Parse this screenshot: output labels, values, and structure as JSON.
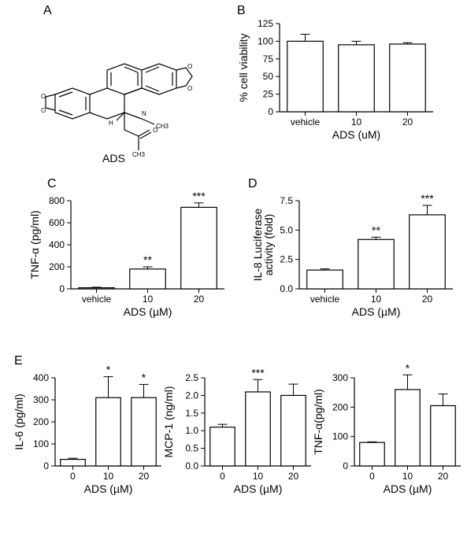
{
  "panelLabels": {
    "A": "A",
    "B": "B",
    "C": "C",
    "D": "D",
    "E": "E"
  },
  "molecule": {
    "caption": "ADS",
    "labels": {
      "N": "N",
      "CH3": "CH3",
      "H": "H",
      "O1": "O",
      "O2": "O",
      "O3": "O",
      "O4": "O",
      "O5": "O",
      "carbonylC": "CH3"
    }
  },
  "panelB": {
    "type": "bar",
    "ylabel": "% cell viability",
    "xlabel": "ADS (uM)",
    "categories": [
      "vehicle",
      "10",
      "20"
    ],
    "values": [
      100,
      95,
      96
    ],
    "errors": [
      10,
      5,
      2
    ],
    "ylim": [
      0,
      125
    ],
    "ytick_step": 25,
    "bar_fill": "#ffffff",
    "bar_stroke": "#000000",
    "axis_color": "#000000",
    "bar_width": 0.7,
    "tick_fontsize": 12,
    "label_fontsize": 14
  },
  "panelC": {
    "type": "bar",
    "ylabel": "TNF-α (pg/ml)",
    "xlabel": "ADS (µM)",
    "categories": [
      "vehicle",
      "10",
      "20"
    ],
    "values": [
      10,
      180,
      740
    ],
    "errors": [
      5,
      20,
      40
    ],
    "sig": [
      "",
      "**",
      "***"
    ],
    "ylim": [
      0,
      800
    ],
    "ytick_step": 200,
    "bar_fill": "#ffffff",
    "bar_stroke": "#000000",
    "axis_color": "#000000",
    "bar_width": 0.7,
    "tick_fontsize": 12,
    "label_fontsize": 14
  },
  "panelD": {
    "type": "bar",
    "ylabel": "IL-8 Luciferase\nactivity (fold)",
    "xlabel": "ADS (µM)",
    "categories": [
      "vehicle",
      "10",
      "20"
    ],
    "values": [
      1.6,
      4.2,
      6.3
    ],
    "errors": [
      0.1,
      0.2,
      0.8
    ],
    "sig": [
      "",
      "**",
      "***"
    ],
    "ylim": [
      0,
      7.5
    ],
    "ytick_step": 2.5,
    "ytick_decimals": 1,
    "bar_fill": "#ffffff",
    "bar_stroke": "#000000",
    "axis_color": "#000000",
    "bar_width": 0.7,
    "tick_fontsize": 12,
    "label_fontsize": 14
  },
  "panelE1": {
    "type": "bar",
    "ylabel": "IL-6 (pg/ml)",
    "xlabel": "ADS (µM)",
    "categories": [
      "0",
      "10",
      "20"
    ],
    "values": [
      30,
      310,
      310
    ],
    "errors": [
      5,
      95,
      60
    ],
    "sig": [
      "",
      "*",
      "*"
    ],
    "ylim": [
      0,
      400
    ],
    "ytick_step": 100,
    "bar_fill": "#ffffff",
    "bar_stroke": "#000000",
    "axis_color": "#000000",
    "bar_width": 0.7,
    "tick_fontsize": 12,
    "label_fontsize": 14
  },
  "panelE2": {
    "type": "bar",
    "ylabel": "MCP-1 (ng/ml)",
    "xlabel": "ADS (µM)",
    "categories": [
      "0",
      "10",
      "20"
    ],
    "values": [
      1.1,
      2.1,
      2.0
    ],
    "errors": [
      0.08,
      0.35,
      0.32
    ],
    "sig": [
      "",
      "***",
      ""
    ],
    "ylim": [
      0,
      2.5
    ],
    "ytick_step": 0.5,
    "ytick_decimals": 1,
    "bar_fill": "#ffffff",
    "bar_stroke": "#000000",
    "axis_color": "#000000",
    "bar_width": 0.7,
    "tick_fontsize": 12,
    "label_fontsize": 14
  },
  "panelE3": {
    "type": "bar",
    "ylabel": "TNF-α(pg/ml)",
    "xlabel": "ADS (µM)",
    "categories": [
      "0",
      "10",
      "20"
    ],
    "values": [
      80,
      260,
      205
    ],
    "errors": [
      2,
      50,
      40
    ],
    "sig": [
      "",
      "*",
      ""
    ],
    "ylim": [
      0,
      300
    ],
    "ytick_step": 100,
    "bar_fill": "#ffffff",
    "bar_stroke": "#000000",
    "axis_color": "#000000",
    "bar_width": 0.7,
    "tick_fontsize": 12,
    "label_fontsize": 14
  }
}
